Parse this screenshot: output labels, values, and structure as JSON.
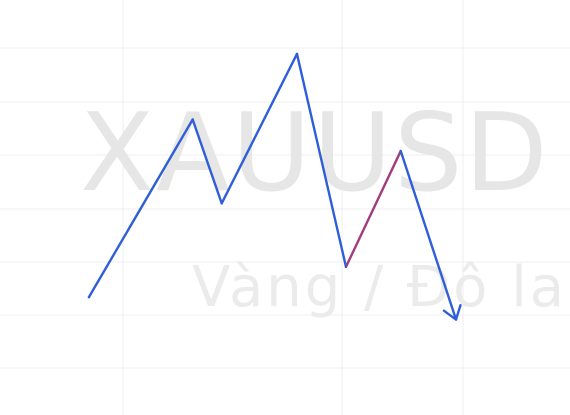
{
  "watermark": {
    "symbol": "XAUUSD ,",
    "name": "Vàng / Đô la"
  },
  "colors": {
    "background": "#ffffff",
    "grid": "#efefef",
    "wave": "#2f5fd8",
    "highlight": "#a03d7e",
    "watermark": "#e6e6e6"
  },
  "chart_data": {
    "type": "line",
    "title": "",
    "xlabel": "",
    "ylabel": "",
    "grid": true,
    "legend": "none",
    "xlim": [
      0,
      10
    ],
    "ylim": [
      0,
      10
    ],
    "series": [
      {
        "color": "#2f5fd8",
        "highlight_segment_index": 4,
        "highlight_color": "#a03d7e",
        "ends_with_arrow": true,
        "points": [
          {
            "x": 1.56,
            "y": 2.84
          },
          {
            "x": 3.38,
            "y": 7.12
          },
          {
            "x": 3.89,
            "y": 5.1
          },
          {
            "x": 5.21,
            "y": 8.7
          },
          {
            "x": 6.07,
            "y": 3.57
          },
          {
            "x": 7.03,
            "y": 6.36
          },
          {
            "x": 8.0,
            "y": 2.3
          }
        ]
      }
    ]
  }
}
